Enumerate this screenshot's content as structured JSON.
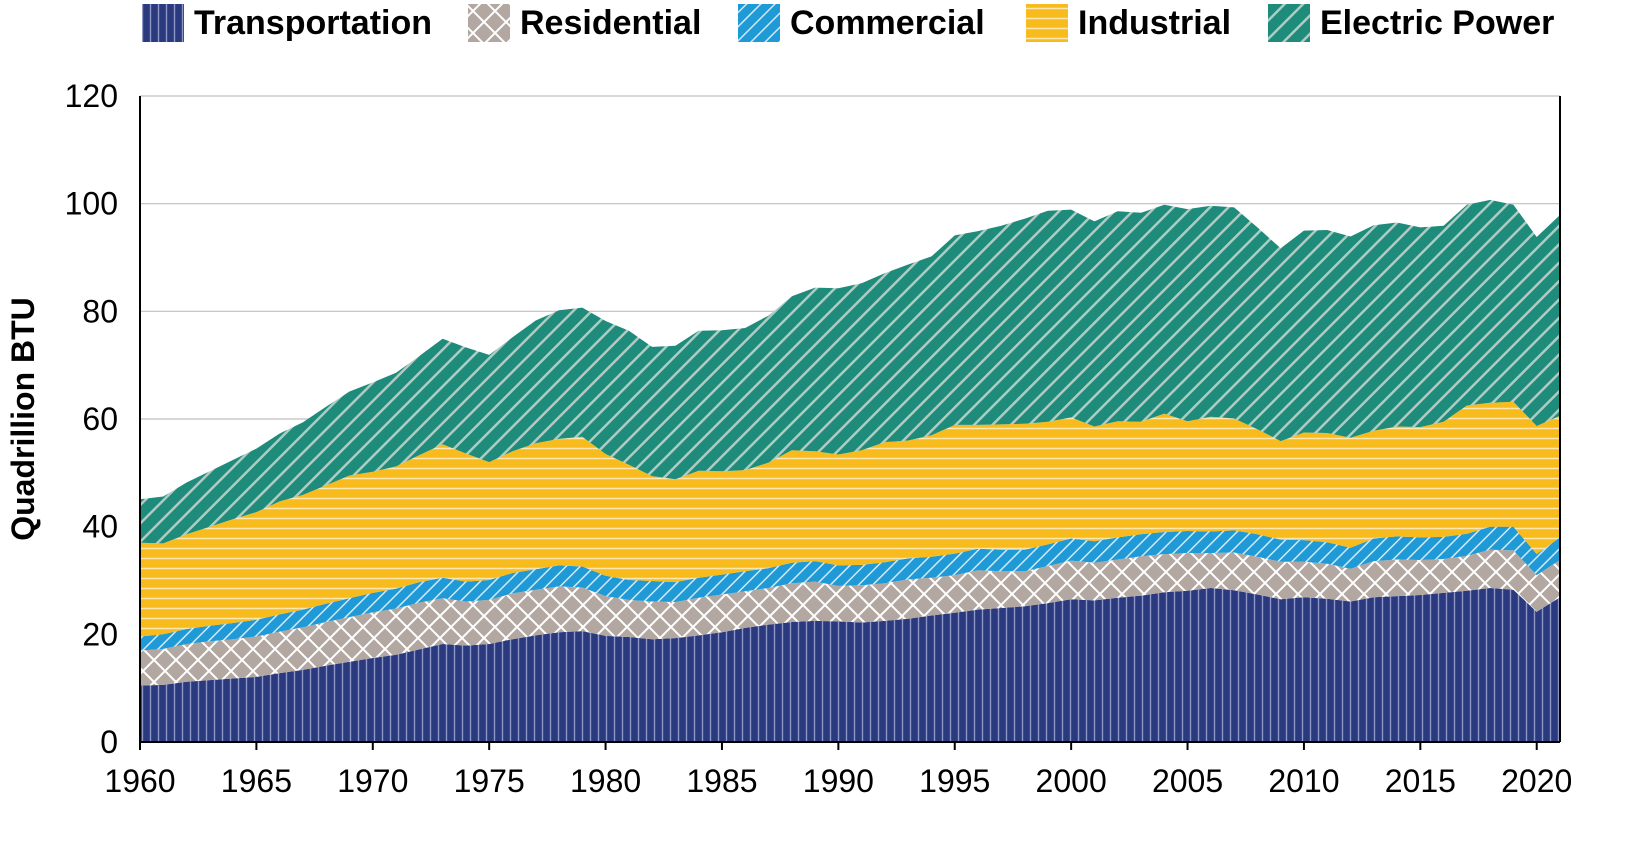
{
  "chart_data": {
    "type": "area",
    "stacked": true,
    "title": "",
    "xlabel": "",
    "ylabel": "Quadrillion BTU",
    "ylim": [
      0,
      120
    ],
    "yticks": [
      0,
      20,
      40,
      60,
      80,
      100,
      120
    ],
    "xlim": [
      1960,
      2021
    ],
    "xticks": [
      1960,
      1965,
      1970,
      1975,
      1980,
      1985,
      1990,
      1995,
      2000,
      2005,
      2010,
      2015,
      2020
    ],
    "grid": "horizontal",
    "legend_position": "top",
    "x": [
      1960,
      1961,
      1962,
      1963,
      1964,
      1965,
      1966,
      1967,
      1968,
      1969,
      1970,
      1971,
      1972,
      1973,
      1974,
      1975,
      1976,
      1977,
      1978,
      1979,
      1980,
      1981,
      1982,
      1983,
      1984,
      1985,
      1986,
      1987,
      1988,
      1989,
      1990,
      1991,
      1992,
      1993,
      1994,
      1995,
      1996,
      1997,
      1998,
      1999,
      2000,
      2001,
      2002,
      2003,
      2004,
      2005,
      2006,
      2007,
      2008,
      2009,
      2010,
      2011,
      2012,
      2013,
      2014,
      2015,
      2016,
      2017,
      2018,
      2019,
      2020,
      2021
    ],
    "series": [
      {
        "name": "Transportation",
        "color": "#2b3a7e",
        "pattern": "vertical",
        "values": [
          10.5,
          10.6,
          11.2,
          11.5,
          11.8,
          12.1,
          12.8,
          13.4,
          14.2,
          14.9,
          15.6,
          16.2,
          17.2,
          18.2,
          17.9,
          18.2,
          19.1,
          19.8,
          20.4,
          20.6,
          19.7,
          19.5,
          19.1,
          19.3,
          19.8,
          20.4,
          21.2,
          21.8,
          22.3,
          22.5,
          22.4,
          22.2,
          22.5,
          22.9,
          23.5,
          24.0,
          24.6,
          24.9,
          25.2,
          25.8,
          26.5,
          26.3,
          26.8,
          27.2,
          27.8,
          28.1,
          28.6,
          28.2,
          27.4,
          26.5,
          26.9,
          26.6,
          26.1,
          26.9,
          27.1,
          27.3,
          27.7,
          28.1,
          28.6,
          28.3,
          24.2,
          26.9
        ]
      },
      {
        "name": "Residential",
        "color": "#b3a8a1",
        "pattern": "crosshatch",
        "values": [
          6.5,
          6.7,
          7.0,
          7.2,
          7.3,
          7.5,
          7.7,
          7.9,
          8.1,
          8.3,
          8.5,
          8.6,
          8.7,
          8.5,
          8.2,
          8.2,
          8.5,
          8.5,
          8.5,
          8.1,
          7.4,
          6.9,
          7.0,
          6.7,
          7.0,
          7.0,
          6.8,
          6.8,
          7.2,
          7.3,
          6.6,
          6.9,
          7.0,
          7.3,
          7.0,
          7.0,
          7.3,
          6.8,
          6.5,
          6.9,
          7.2,
          7.0,
          7.1,
          7.3,
          7.1,
          7.0,
          6.5,
          7.0,
          7.0,
          7.0,
          6.6,
          6.5,
          6.1,
          6.7,
          6.8,
          6.5,
          6.3,
          6.5,
          7.1,
          7.3,
          6.8,
          6.9
        ]
      },
      {
        "name": "Commercial",
        "color": "#1f9ad6",
        "pattern": "diagonal",
        "values": [
          2.6,
          2.7,
          2.8,
          2.9,
          3.0,
          3.1,
          3.2,
          3.3,
          3.4,
          3.5,
          3.6,
          3.7,
          3.8,
          3.8,
          3.7,
          3.7,
          3.8,
          3.8,
          3.9,
          3.9,
          3.8,
          3.7,
          3.8,
          3.7,
          3.7,
          3.7,
          3.7,
          3.7,
          3.8,
          3.8,
          3.8,
          3.8,
          3.9,
          3.9,
          3.9,
          4.0,
          4.0,
          4.0,
          4.0,
          4.0,
          4.1,
          4.0,
          4.1,
          4.1,
          4.1,
          4.1,
          4.0,
          4.1,
          4.2,
          4.1,
          4.0,
          4.0,
          3.9,
          4.2,
          4.3,
          4.2,
          4.1,
          4.1,
          4.3,
          4.4,
          3.9,
          4.2
        ]
      },
      {
        "name": "Industrial",
        "color": "#f7bb1e",
        "pattern": "horizontal",
        "values": [
          17.4,
          16.9,
          17.6,
          18.4,
          19.3,
          20.0,
          21.0,
          21.3,
          22.0,
          22.8,
          22.5,
          22.7,
          23.6,
          24.8,
          23.8,
          21.9,
          22.6,
          23.4,
          23.5,
          24.1,
          22.6,
          21.4,
          19.5,
          19.1,
          19.9,
          19.2,
          18.8,
          19.6,
          20.9,
          20.4,
          20.6,
          21.3,
          22.3,
          21.9,
          22.6,
          23.9,
          23.0,
          23.3,
          23.4,
          22.8,
          22.5,
          21.3,
          21.6,
          20.9,
          22.0,
          20.4,
          21.3,
          20.8,
          19.5,
          18.3,
          20.0,
          20.3,
          20.4,
          20.0,
          20.4,
          20.5,
          21.4,
          23.8,
          23.0,
          23.2,
          23.8,
          22.6
        ]
      },
      {
        "name": "Electric Power",
        "color": "#1f8b7b",
        "pattern": "diagonal-wide",
        "values": [
          8.1,
          8.7,
          9.6,
          10.3,
          11.0,
          11.8,
          12.6,
          13.5,
          14.6,
          15.6,
          16.6,
          17.4,
          18.4,
          19.6,
          19.7,
          19.9,
          21.2,
          22.8,
          23.9,
          24.0,
          24.7,
          24.9,
          24.0,
          24.8,
          26.0,
          26.2,
          26.4,
          27.3,
          28.6,
          30.4,
          30.9,
          31.0,
          31.4,
          32.7,
          33.2,
          35.2,
          36.0,
          36.9,
          38.1,
          39.2,
          38.6,
          38.1,
          39.0,
          38.8,
          38.8,
          39.4,
          39.2,
          39.2,
          37.5,
          35.8,
          37.5,
          37.7,
          37.4,
          38.2,
          37.9,
          37.1,
          36.4,
          37.3,
          37.7,
          36.6,
          35.1,
          37.3
        ]
      }
    ]
  }
}
